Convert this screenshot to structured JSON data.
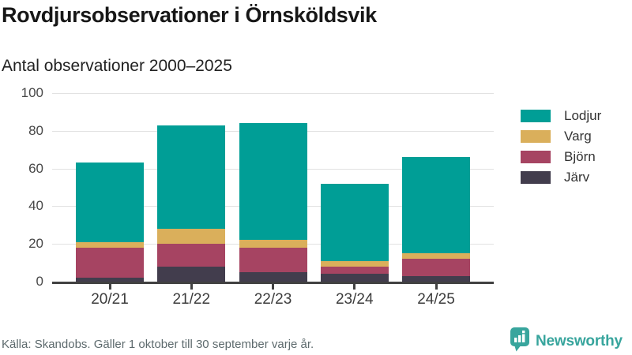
{
  "header": {
    "title": "Rovdjursobservationer i Örnsköldsvik",
    "subtitle": "Antal observationer 2000–2025"
  },
  "chart_data": {
    "type": "bar",
    "stacked": true,
    "title": "Rovdjursobservationer i Örnsköldsvik",
    "subtitle": "Antal observationer 2000–2025",
    "categories": [
      "20/21",
      "21/22",
      "22/23",
      "23/24",
      "24/25"
    ],
    "series": [
      {
        "name": "Järv",
        "color": "#423d4d",
        "values": [
          2,
          8,
          5,
          4,
          3
        ]
      },
      {
        "name": "Björn",
        "color": "#a64462",
        "values": [
          16,
          12,
          13,
          4,
          9
        ]
      },
      {
        "name": "Varg",
        "color": "#daaf5b",
        "values": [
          3,
          8,
          4,
          3,
          3
        ]
      },
      {
        "name": "Lodjur",
        "color": "#009e96",
        "values": [
          42,
          55,
          62,
          41,
          51
        ]
      }
    ],
    "stack_order_bottom_to_top": [
      "Järv",
      "Björn",
      "Varg",
      "Lodjur"
    ],
    "totals": [
      63,
      83,
      84,
      52,
      66
    ],
    "xlabel": "",
    "ylabel": "",
    "ylim": [
      0,
      100
    ],
    "yticks": [
      0,
      20,
      40,
      60,
      80,
      100
    ],
    "grid": true,
    "legend": [
      "Lodjur",
      "Varg",
      "Björn",
      "Järv"
    ],
    "legend_position": "right",
    "axis_color": "#414141",
    "grid_color": "#e2e2e2"
  },
  "footer": {
    "source": "Källa: Skandobs. Gäller 1 oktober till 30 september varje år.",
    "brand": "Newsworthy",
    "brand_color": "#38a59d"
  }
}
